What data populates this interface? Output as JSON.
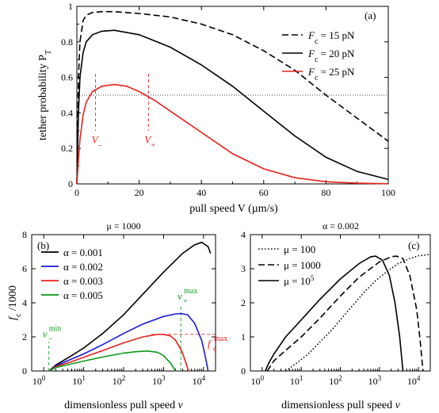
{
  "chart_data": [
    {
      "panel": "(a)",
      "type": "line",
      "xlabel": "pull speed V (µm/s)",
      "ylabel": "tether probability P_T",
      "xlim": [
        0,
        100
      ],
      "ylim": [
        0,
        1
      ],
      "xticks": [
        "0",
        "20",
        "40",
        "60",
        "80",
        "100"
      ],
      "yticks": [
        "0",
        "0.2",
        "0.4",
        "0.6",
        "0.8",
        "1"
      ],
      "legend_position": "top-right",
      "series": [
        {
          "name": "F_c = 15 pN",
          "style": "dashed",
          "color": "#000000",
          "x": [
            0,
            0.5,
            1,
            2,
            3,
            5,
            8,
            12,
            20,
            30,
            40,
            50,
            60,
            70,
            80,
            90,
            100
          ],
          "y": [
            0,
            0.6,
            0.8,
            0.92,
            0.95,
            0.965,
            0.97,
            0.97,
            0.96,
            0.94,
            0.9,
            0.84,
            0.75,
            0.64,
            0.5,
            0.37,
            0.24
          ]
        },
        {
          "name": "F_c = 20 pN",
          "style": "solid",
          "color": "#000000",
          "x": [
            0,
            0.5,
            1,
            2,
            3,
            5,
            8,
            12,
            20,
            30,
            40,
            50,
            60,
            70,
            80,
            90,
            100
          ],
          "y": [
            0,
            0.4,
            0.6,
            0.74,
            0.8,
            0.84,
            0.86,
            0.865,
            0.84,
            0.77,
            0.67,
            0.55,
            0.41,
            0.27,
            0.15,
            0.07,
            0.025
          ]
        },
        {
          "name": "F_c = 25 pN",
          "style": "solid",
          "color": "#e8201c",
          "x": [
            0,
            0.5,
            1,
            2,
            3,
            5,
            8,
            12,
            16,
            20,
            25,
            30,
            40,
            50,
            60,
            70,
            80,
            90,
            100
          ],
          "y": [
            0,
            0.14,
            0.25,
            0.39,
            0.46,
            0.52,
            0.55,
            0.56,
            0.55,
            0.52,
            0.47,
            0.41,
            0.29,
            0.17,
            0.085,
            0.035,
            0.012,
            0.004,
            0.001
          ]
        }
      ],
      "reference_line": {
        "y": 0.5,
        "style": "dotted"
      },
      "annotations": [
        {
          "label": "V_−",
          "x": 6
        },
        {
          "label": "V_+",
          "x": 23
        }
      ]
    },
    {
      "panel": "(b)",
      "type": "line",
      "title": "μ = 1000",
      "xlabel": "dimensionless pull speed v",
      "ylabel": "f_c / 1000",
      "xscale": "log",
      "xlim": [
        0.5,
        20000
      ],
      "ylim": [
        0,
        8
      ],
      "xticks": [
        "10^0",
        "10^1",
        "10^2",
        "10^3",
        "10^4"
      ],
      "yticks": [
        "0",
        "2",
        "4",
        "6",
        "8"
      ],
      "legend_position": "top-left",
      "series": [
        {
          "name": "α = 0.001",
          "color": "#000000",
          "x": [
            1.35,
            2,
            5,
            10,
            30,
            100,
            300,
            1000,
            3000,
            6000,
            9000,
            13000,
            15000
          ],
          "y": [
            0,
            0.35,
            0.9,
            1.35,
            2.2,
            3.3,
            4.5,
            5.8,
            6.9,
            7.4,
            7.55,
            7.3,
            6.9
          ]
        },
        {
          "name": "α = 0.002",
          "color": "#1a1ad4",
          "x": [
            1.35,
            2,
            5,
            10,
            30,
            100,
            300,
            1000,
            2000,
            2700,
            4000,
            6000,
            9000,
            11000,
            13000
          ],
          "y": [
            0,
            0.3,
            0.7,
            1.0,
            1.55,
            2.2,
            2.75,
            3.2,
            3.35,
            3.37,
            3.3,
            2.8,
            1.8,
            0.9,
            0
          ]
        },
        {
          "name": "α = 0.003",
          "color": "#e8201c",
          "x": [
            1.35,
            2,
            5,
            10,
            30,
            100,
            300,
            700,
            1000,
            1500,
            2000,
            2800,
            3500,
            4200
          ],
          "y": [
            0,
            0.25,
            0.55,
            0.8,
            1.2,
            1.65,
            2.0,
            2.15,
            2.15,
            2.05,
            1.8,
            1.2,
            0.6,
            0
          ]
        },
        {
          "name": "α = 0.005",
          "color": "#0c9a1a",
          "x": [
            1.35,
            2,
            5,
            10,
            30,
            100,
            200,
            400,
            700,
            1000,
            1500,
            2000
          ],
          "y": [
            0,
            0.2,
            0.42,
            0.58,
            0.82,
            1.05,
            1.13,
            1.17,
            1.1,
            0.9,
            0.45,
            0
          ]
        }
      ],
      "annotations": [
        {
          "label": "v_−^min",
          "x": 1.35,
          "y": 1.6
        },
        {
          "label": "v_+^max",
          "x": 2700,
          "y": 4.7
        },
        {
          "label": "f_c^max",
          "x": 15000,
          "y": 2.15
        }
      ]
    },
    {
      "panel": "(c)",
      "type": "line",
      "title": "α = 0.002",
      "xlabel": "dimensionless pull speed v",
      "xscale": "log",
      "xlim": [
        0.5,
        20000
      ],
      "ylim": [
        0,
        4
      ],
      "xticks": [
        "10^0",
        "10^1",
        "10^2",
        "10^3",
        "10^4"
      ],
      "yticks": [
        "0",
        "1",
        "2",
        "3",
        "4"
      ],
      "legend_position": "top-left",
      "series": [
        {
          "name": "μ = 100",
          "style": "dotted",
          "color": "#000000",
          "x": [
            4,
            8,
            15,
            30,
            60,
            100,
            200,
            400,
            800,
            1500,
            3000,
            6000,
            10000,
            20000
          ],
          "y": [
            0,
            0.25,
            0.5,
            0.85,
            1.2,
            1.5,
            1.9,
            2.3,
            2.65,
            2.9,
            3.15,
            3.3,
            3.38,
            3.42
          ]
        },
        {
          "name": "μ = 1000",
          "style": "dashed",
          "color": "#000000",
          "x": [
            1.35,
            2,
            5,
            10,
            30,
            100,
            300,
            1000,
            2000,
            2700,
            4000,
            6000,
            9000,
            11000,
            13000
          ],
          "y": [
            0,
            0.3,
            0.7,
            1.0,
            1.55,
            2.2,
            2.75,
            3.2,
            3.35,
            3.37,
            3.3,
            2.8,
            1.8,
            0.9,
            0
          ]
        },
        {
          "name": "μ = 10^5",
          "style": "solid",
          "color": "#000000",
          "x": [
            1.2,
            1.5,
            2,
            4,
            10,
            30,
            100,
            300,
            600,
            800,
            1200,
            1800,
            2500,
            3300,
            4000
          ],
          "y": [
            0,
            0.25,
            0.5,
            1.0,
            1.5,
            2.1,
            2.7,
            3.15,
            3.35,
            3.37,
            3.25,
            2.8,
            2.0,
            1.0,
            0
          ]
        }
      ]
    }
  ],
  "panel_a": {
    "label": "(a)",
    "ylabel_main": "tether probability P",
    "ylabel_sub": "T",
    "xlabel_main": "pull speed  V",
    "xlabel_unit": " (µm/s)",
    "ticks_x": [
      "0",
      "20",
      "40",
      "60",
      "80",
      "100"
    ],
    "ticks_y": [
      "0",
      "0.2",
      "0.4",
      "0.6",
      "0.8",
      "1"
    ],
    "legend": [
      {
        "main": "F",
        "sub": "c",
        "rest": " = 15 pN",
        "color": "#000000",
        "dash": "dashed"
      },
      {
        "main": "F",
        "sub": "c",
        "rest": " = 20 pN",
        "color": "#000000",
        "dash": "solid"
      },
      {
        "main": "F",
        "sub": "c",
        "rest": " = 25 pN",
        "color": "#e8201c",
        "dash": "solid"
      }
    ],
    "vminus": {
      "main": "V",
      "sub": "−"
    },
    "vplus": {
      "main": "V",
      "sub": "+"
    }
  },
  "panel_b": {
    "label": "(b)",
    "title": "μ = 1000",
    "ylabel_main": "f",
    "ylabel_sub": "c",
    "ylabel_rest": " /1000",
    "xlabel_main": "dimensionless pull speed  ",
    "xlabel_var": "v",
    "ticks_y": [
      "0",
      "2",
      "4",
      "6",
      "8"
    ],
    "ticks_x_base": "10",
    "ticks_x_exp": [
      "0",
      "1",
      "2",
      "3",
      "4"
    ],
    "legend": [
      {
        "text": "α = 0.001",
        "color": "#000000"
      },
      {
        "text": "α = 0.002",
        "color": "#1a1ad4"
      },
      {
        "text": "α = 0.003",
        "color": "#e8201c"
      },
      {
        "text": "α = 0.005",
        "color": "#0c9a1a"
      }
    ],
    "vmin": {
      "main": "v",
      "sup": "min",
      "sub": "−"
    },
    "vmax": {
      "main": "v",
      "sup": "max",
      "sub": "+"
    },
    "fmax": {
      "main": "f",
      "sup": "max",
      "sub": "c"
    }
  },
  "panel_c": {
    "label": "(c)",
    "title": "α = 0.002",
    "xlabel_main": "dimensionless pull speed  ",
    "xlabel_var": "v",
    "ticks_y": [
      "0",
      "1",
      "2",
      "3",
      "4"
    ],
    "ticks_x_base": "10",
    "ticks_x_exp": [
      "0",
      "1",
      "2",
      "3",
      "4"
    ],
    "legend": [
      {
        "text": "μ = 100",
        "dash": "dotted"
      },
      {
        "text": "μ = 1000",
        "dash": "dashed"
      },
      {
        "text": "μ = 10",
        "sup": "5",
        "dash": "solid"
      }
    ]
  }
}
